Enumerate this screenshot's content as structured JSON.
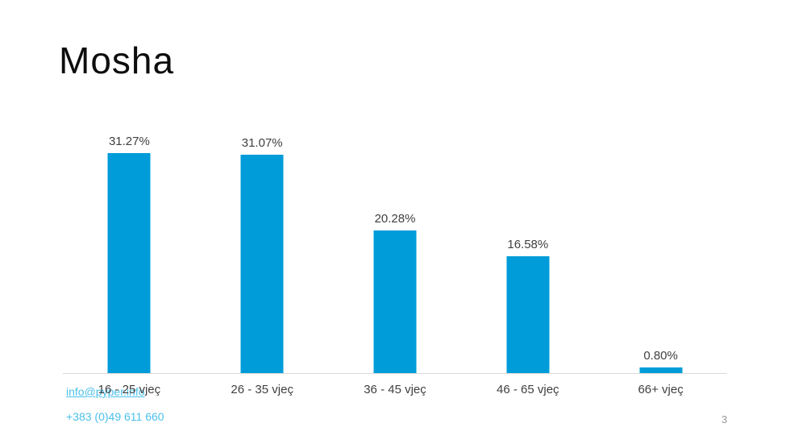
{
  "slide": {
    "title": "Mosha",
    "page_number": "3"
  },
  "footer": {
    "email": "info@pyper.info",
    "phone": "+383 (0)49 611 660",
    "link_color": "#4bc0ea"
  },
  "chart_data": {
    "type": "bar",
    "title": "Mosha",
    "categories": [
      "16 - 25 vjeç",
      "26 - 35 vjeç",
      "36 - 45 vjeç",
      "46 - 65 vjeç",
      "66+ vjeç"
    ],
    "values": [
      31.27,
      31.07,
      20.28,
      16.58,
      0.8
    ],
    "value_labels": [
      "31.27%",
      "31.07%",
      "20.28%",
      "16.58%",
      "0.80%"
    ],
    "xlabel": "",
    "ylabel": "",
    "ylim": [
      0,
      35
    ],
    "grid": false,
    "legend": "none",
    "bar_color": "#009cd9",
    "axis_line_color": "#d9d9d9",
    "label_color": "#3f3f3f"
  }
}
